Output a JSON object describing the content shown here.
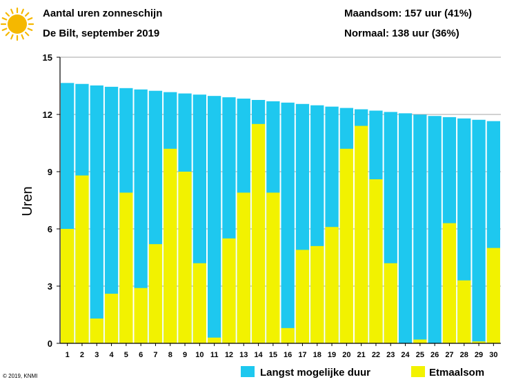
{
  "header": {
    "title": "Aantal uren zonneschijn",
    "subtitle": "De Bilt, september 2019",
    "month_total": "Maandsom: 157 uur (41%)",
    "normal": "Normaal: 138 uur (36%)"
  },
  "footer": {
    "copyright": "© 2019, KNMI"
  },
  "colors": {
    "max_duration": "#1ec8ef",
    "daily_sum": "#f2f200",
    "sun": "#f5b800",
    "axis": "#000000"
  },
  "icons": {
    "logo": "sun-icon"
  },
  "chart_data": {
    "type": "bar",
    "ylabel": "Uren",
    "xlabel": "",
    "ylim": [
      0,
      15
    ],
    "yticks": [
      0,
      3,
      6,
      9,
      12,
      15
    ],
    "grid": true,
    "legend_position": "bottom",
    "categories": [
      "1",
      "2",
      "3",
      "4",
      "5",
      "6",
      "7",
      "8",
      "9",
      "10",
      "11",
      "12",
      "13",
      "14",
      "15",
      "16",
      "17",
      "18",
      "19",
      "20",
      "21",
      "22",
      "23",
      "24",
      "25",
      "26",
      "27",
      "28",
      "29",
      "30"
    ],
    "series": [
      {
        "name": "Langst mogelijke duur",
        "values": [
          13.65,
          13.6,
          13.52,
          13.45,
          13.38,
          13.31,
          13.24,
          13.17,
          13.1,
          13.04,
          12.97,
          12.9,
          12.83,
          12.76,
          12.69,
          12.62,
          12.55,
          12.48,
          12.41,
          12.34,
          12.27,
          12.2,
          12.13,
          12.06,
          11.99,
          11.92,
          11.86,
          11.79,
          11.72,
          11.65
        ]
      },
      {
        "name": "Etmaalsom",
        "values": [
          6.0,
          8.8,
          1.3,
          2.6,
          7.9,
          2.9,
          5.2,
          10.2,
          9.0,
          4.2,
          0.3,
          5.5,
          7.9,
          11.5,
          7.9,
          0.8,
          4.9,
          5.1,
          6.1,
          10.2,
          11.4,
          8.6,
          4.2,
          0.0,
          0.2,
          0.0,
          6.3,
          3.3,
          0.1,
          5.0
        ]
      }
    ]
  }
}
